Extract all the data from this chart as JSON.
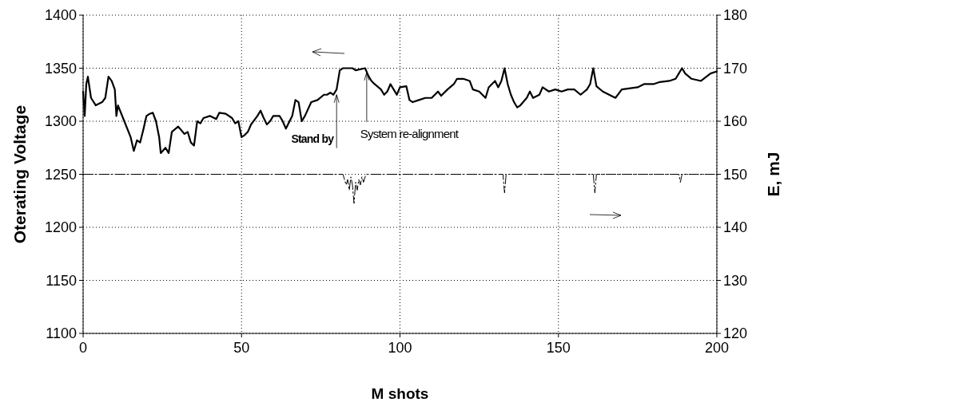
{
  "chart_data": {
    "type": "line",
    "xlabel": "M shots",
    "ylabel": "Oterating Voltage",
    "y2label": "E, mJ",
    "xlim": [
      0,
      200
    ],
    "xticks": [
      0,
      50,
      100,
      150,
      200
    ],
    "ylim": [
      1100,
      1400
    ],
    "yticks": [
      1100,
      1150,
      1200,
      1250,
      1300,
      1350,
      1400
    ],
    "y2lim": [
      120,
      180
    ],
    "y2ticks": [
      120,
      130,
      140,
      150,
      160,
      170,
      180
    ],
    "grid": true,
    "marker": "none",
    "series": [
      {
        "color": "#000000",
        "line_style": "solid",
        "x": [
          0,
          0.5,
          1,
          1.5,
          2.5,
          4,
          6,
          7,
          8,
          9,
          10,
          10.5,
          11,
          13,
          15,
          16,
          17,
          18,
          19,
          20,
          21,
          22,
          23,
          24,
          24.5,
          26,
          27,
          28,
          30,
          32,
          33,
          34,
          35,
          36,
          37,
          38,
          40,
          42,
          43,
          45,
          47,
          48,
          49,
          50,
          51,
          52,
          53,
          55,
          56,
          57,
          58,
          59,
          60,
          62,
          63,
          64,
          66,
          67,
          68,
          69,
          70,
          72,
          74,
          76,
          77,
          78,
          79,
          80,
          81,
          82,
          85,
          86,
          89,
          90,
          91,
          92,
          94,
          95,
          96,
          97,
          98,
          99,
          100,
          102,
          103,
          104,
          106,
          108,
          110,
          112,
          113,
          115,
          117,
          118,
          120,
          122,
          123,
          125,
          127,
          128,
          130,
          131,
          132,
          133,
          134,
          135,
          136,
          137,
          138,
          140,
          141,
          142,
          144,
          145,
          147,
          149,
          151,
          153,
          155,
          157,
          159,
          160,
          161,
          162,
          164,
          166,
          168,
          170,
          175,
          177,
          180,
          182,
          185,
          187,
          188,
          189,
          190,
          192,
          195,
          198,
          200
        ],
        "values": [
          1328,
          1305,
          1335,
          1342,
          1322,
          1315,
          1318,
          1322,
          1342,
          1338,
          1330,
          1305,
          1315,
          1300,
          1285,
          1272,
          1282,
          1280,
          1292,
          1305,
          1307,
          1308,
          1300,
          1285,
          1270,
          1275,
          1270,
          1290,
          1295,
          1288,
          1290,
          1280,
          1277,
          1300,
          1298,
          1303,
          1305,
          1302,
          1308,
          1307,
          1303,
          1298,
          1300,
          1285,
          1287,
          1290,
          1297,
          1305,
          1310,
          1303,
          1297,
          1300,
          1305,
          1305,
          1300,
          1293,
          1305,
          1320,
          1318,
          1300,
          1305,
          1318,
          1320,
          1325,
          1325,
          1327,
          1325,
          1330,
          1348,
          1350,
          1350,
          1348,
          1350,
          1343,
          1338,
          1335,
          1330,
          1325,
          1328,
          1335,
          1330,
          1325,
          1332,
          1333,
          1320,
          1318,
          1320,
          1322,
          1322,
          1328,
          1324,
          1330,
          1335,
          1340,
          1340,
          1338,
          1330,
          1328,
          1322,
          1332,
          1338,
          1332,
          1338,
          1350,
          1335,
          1325,
          1318,
          1313,
          1315,
          1322,
          1328,
          1322,
          1325,
          1332,
          1328,
          1330,
          1328,
          1330,
          1330,
          1325,
          1330,
          1335,
          1350,
          1333,
          1328,
          1325,
          1322,
          1330,
          1332,
          1335,
          1335,
          1337,
          1338,
          1340,
          1345,
          1350,
          1345,
          1340,
          1338,
          1345,
          1347
        ]
      },
      {
        "color": "#000000",
        "axis": "y2",
        "line_style": "dashed",
        "x": [
          0,
          82,
          83,
          83.5,
          84,
          84.5,
          85,
          85.5,
          86,
          86.5,
          87,
          87.5,
          88,
          88.5,
          89,
          89.5,
          132.5,
          133,
          133.5,
          161,
          161.5,
          162,
          188,
          188.5,
          189,
          200
        ],
        "values": [
          150,
          150,
          148,
          149,
          147,
          149.5,
          148,
          144.5,
          148.5,
          147,
          149,
          148,
          149.5,
          148.5,
          149.5,
          150,
          150,
          146.5,
          150,
          150,
          146.5,
          150,
          150,
          148.5,
          150,
          150
        ]
      }
    ],
    "annotations": [
      {
        "text": "Stand by",
        "x": 80,
        "y": 1325
      },
      {
        "text": "System re-alignment",
        "x": 89.5,
        "y": 1346
      }
    ]
  }
}
